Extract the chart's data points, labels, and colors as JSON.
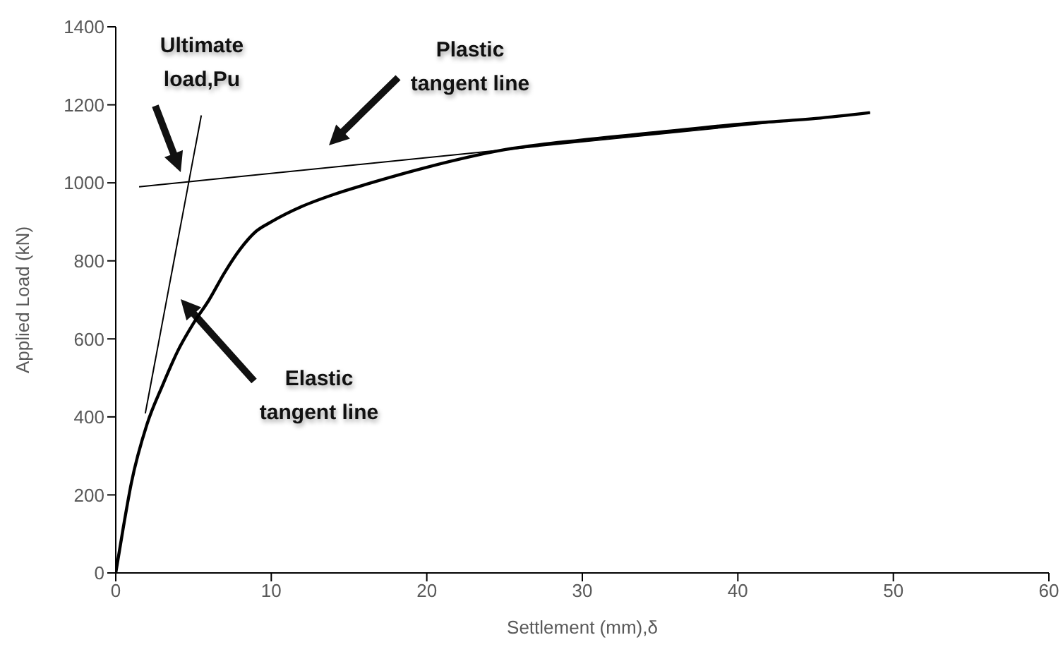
{
  "chart_data": {
    "type": "line",
    "xlabel": "Settlement (mm),δ",
    "ylabel": "Applied Load (kN)",
    "xlim": [
      0,
      60
    ],
    "xticks": [
      0,
      10,
      20,
      30,
      40,
      50,
      60
    ],
    "ylim": [
      0,
      1400
    ],
    "yticks": [
      0,
      200,
      400,
      600,
      800,
      1000,
      1200,
      1400
    ],
    "marker": "none",
    "series": [
      {
        "color": "#000000",
        "x": [
          0,
          0.5,
          1,
          2,
          3,
          4,
          5,
          6,
          7,
          8,
          9,
          10,
          12,
          14,
          16,
          20,
          25,
          30,
          35,
          40,
          45,
          48.5
        ],
        "values": [
          0,
          120,
          230,
          380,
          480,
          570,
          640,
          700,
          770,
          830,
          875,
          900,
          940,
          970,
          995,
          1040,
          1085,
          1110,
          1130,
          1150,
          1165,
          1180
        ]
      },
      {
        "color": "#000000",
        "x": [
          1.9,
          5.5
        ],
        "values": [
          409,
          1173
        ]
      },
      {
        "color": "#000000",
        "x": [
          1.5,
          48.5
        ],
        "values": [
          990,
          1180
        ]
      }
    ],
    "annotations": [
      "Ultimate load,Pu",
      "Plastic tangent line",
      "Elastic tangent line"
    ]
  }
}
